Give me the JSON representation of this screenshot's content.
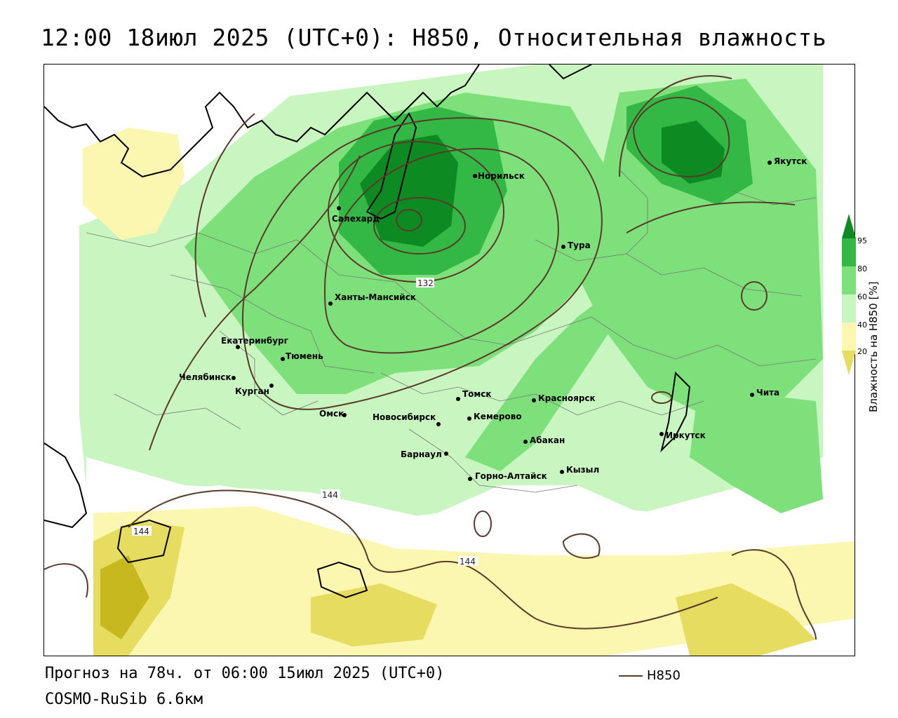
{
  "title": "12:00 18июл 2025 (UTC+0): H850, Относительная влажность",
  "forecast": "Прогноз на 78ч. от 06:00 15июл 2025 (UTC+0)",
  "model": "COSMO-RuSib 6.6км",
  "legend": {
    "label": "H850",
    "color": "#5a3a2a"
  },
  "colorbar": {
    "title": "Влажность на H850 [%]",
    "ticks": [
      "95",
      "80",
      "60",
      "40",
      "20"
    ],
    "colors": {
      "very_dry": "#c8b820",
      "dry": "#e6dc60",
      "moderate_dry": "#fbf6b0",
      "neutral": "#ffffff",
      "moist": "#c8f5c0",
      "wet": "#7ee07a",
      "very_wet": "#33b845",
      "saturated": "#0e8a22"
    }
  },
  "contour_labels": [
    "132",
    "144",
    "144",
    "144"
  ],
  "cities": [
    {
      "name": "Салехард"
    },
    {
      "name": "Норильск"
    },
    {
      "name": "Якутск"
    },
    {
      "name": "Тура"
    },
    {
      "name": "Ханты-Мансийск"
    },
    {
      "name": "Екатеринбург"
    },
    {
      "name": "Тюмень"
    },
    {
      "name": "Челябинск"
    },
    {
      "name": "Курган"
    },
    {
      "name": "Омск"
    },
    {
      "name": "Новосибирск"
    },
    {
      "name": "Томск"
    },
    {
      "name": "Кемерово"
    },
    {
      "name": "Красноярск"
    },
    {
      "name": "Барнаул"
    },
    {
      "name": "Абакан"
    },
    {
      "name": "Горно-Алтайск"
    },
    {
      "name": "Кызыл"
    },
    {
      "name": "Иркутск"
    },
    {
      "name": "Чита"
    }
  ]
}
